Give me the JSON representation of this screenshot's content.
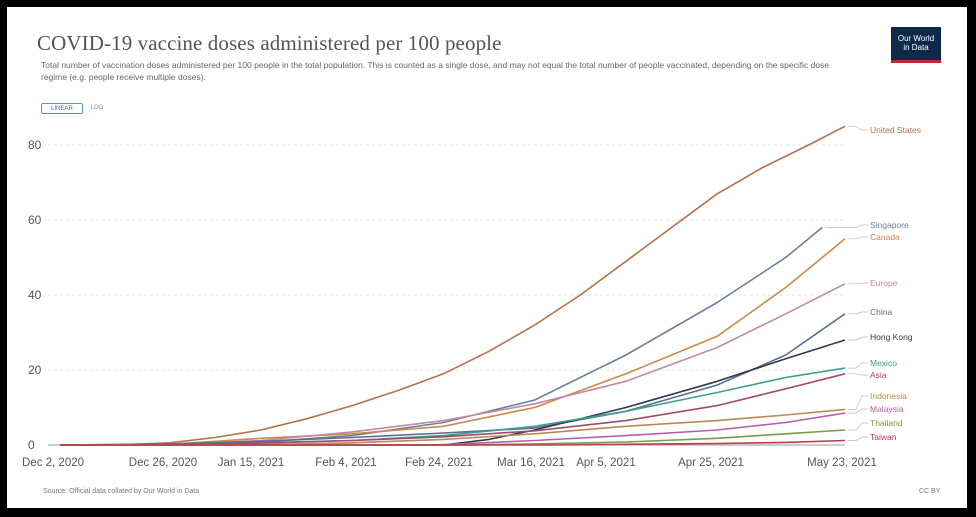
{
  "header": {
    "title": "COVID-19 vaccine doses administered per 100 people",
    "subtitle": "Total number of vaccination doses administered per 100 people in the total population. This is counted as a single dose, and may not equal the total number of people vaccinated, depending on the specific dose regime (e.g. people receive multiple doses).",
    "logo_text": "Our World in Data"
  },
  "controls": {
    "linear_label": "LINEAR",
    "log_label": "LOG",
    "active": "LINEAR"
  },
  "footer": {
    "source": "Source: Official data collated by Our World in Data",
    "license": "CC BY"
  },
  "colors": {
    "frame": "#000000",
    "grid": "#e3e3e3",
    "axis": "#999999",
    "logo_bg": "#0e2a4a",
    "logo_accent": "#c4262e"
  },
  "chart_data": {
    "type": "line",
    "title": "COVID-19 vaccine doses administered per 100 people",
    "xlabel": "",
    "ylabel": "",
    "x_ticks": [
      "Dec 2, 2020",
      "Dec 26, 2020",
      "Jan 15, 2021",
      "Feb 4, 2021",
      "Feb 24, 2021",
      "Mar 16, 2021",
      "Apr 5, 2021",
      "Apr 25, 2021",
      "May 23, 2021"
    ],
    "y_ticks": [
      0,
      20,
      40,
      60,
      80
    ],
    "ylim": [
      0,
      88
    ],
    "xlim": [
      "2020-12-02",
      "2021-05-23"
    ],
    "grid": "horizontal",
    "legend": "line-end labels, right",
    "series": [
      {
        "name": "United States",
        "color": "#b5724a",
        "points": [
          [
            "2020-12-02",
            0
          ],
          [
            "2020-12-14",
            0
          ],
          [
            "2020-12-26",
            0.6
          ],
          [
            "2021-01-05",
            2
          ],
          [
            "2021-01-15",
            4
          ],
          [
            "2021-01-25",
            7
          ],
          [
            "2021-02-04",
            10.5
          ],
          [
            "2021-02-14",
            14.5
          ],
          [
            "2021-02-24",
            19
          ],
          [
            "2021-03-06",
            25
          ],
          [
            "2021-03-16",
            32
          ],
          [
            "2021-03-26",
            40
          ],
          [
            "2021-04-05",
            49
          ],
          [
            "2021-04-15",
            58
          ],
          [
            "2021-04-25",
            67
          ],
          [
            "2021-05-05",
            74
          ],
          [
            "2021-05-15",
            80
          ],
          [
            "2021-05-23",
            85
          ]
        ]
      },
      {
        "name": "Singapore",
        "color": "#6d7f9c",
        "points": [
          [
            "2020-12-02",
            0
          ],
          [
            "2020-12-30",
            0
          ],
          [
            "2021-01-15",
            0.8
          ],
          [
            "2021-02-04",
            2.5
          ],
          [
            "2021-02-24",
            6
          ],
          [
            "2021-03-16",
            12
          ],
          [
            "2021-04-05",
            24
          ],
          [
            "2021-04-25",
            38
          ],
          [
            "2021-05-10",
            50
          ],
          [
            "2021-05-18",
            58
          ]
        ]
      },
      {
        "name": "Canada",
        "color": "#c98a4a",
        "points": [
          [
            "2020-12-02",
            0
          ],
          [
            "2020-12-14",
            0
          ],
          [
            "2020-12-26",
            0.2
          ],
          [
            "2021-01-15",
            1.8
          ],
          [
            "2021-02-04",
            3
          ],
          [
            "2021-02-24",
            5
          ],
          [
            "2021-03-16",
            10
          ],
          [
            "2021-04-05",
            19
          ],
          [
            "2021-04-25",
            29
          ],
          [
            "2021-05-10",
            42
          ],
          [
            "2021-05-23",
            55
          ]
        ]
      },
      {
        "name": "Europe",
        "color": "#c18aa0",
        "points": [
          [
            "2020-12-02",
            0
          ],
          [
            "2020-12-26",
            0.1
          ],
          [
            "2021-01-15",
            1.2
          ],
          [
            "2021-02-04",
            3.5
          ],
          [
            "2021-02-24",
            6.5
          ],
          [
            "2021-03-16",
            11
          ],
          [
            "2021-04-05",
            17
          ],
          [
            "2021-04-25",
            26
          ],
          [
            "2021-05-10",
            35
          ],
          [
            "2021-05-23",
            43
          ]
        ]
      },
      {
        "name": "China",
        "color": "#5a6f8a",
        "points": [
          [
            "2020-12-02",
            0
          ],
          [
            "2020-12-26",
            0.3
          ],
          [
            "2021-01-15",
            1
          ],
          [
            "2021-02-04",
            2
          ],
          [
            "2021-02-24",
            3.2
          ],
          [
            "2021-03-16",
            4.5
          ],
          [
            "2021-04-05",
            9
          ],
          [
            "2021-04-25",
            16
          ],
          [
            "2021-05-10",
            24
          ],
          [
            "2021-05-23",
            35
          ]
        ]
      },
      {
        "name": "Hong Kong",
        "color": "#2f3a4a",
        "points": [
          [
            "2020-12-02",
            0
          ],
          [
            "2021-02-24",
            0
          ],
          [
            "2021-03-06",
            1.5
          ],
          [
            "2021-03-16",
            4
          ],
          [
            "2021-04-05",
            10
          ],
          [
            "2021-04-25",
            17
          ],
          [
            "2021-05-10",
            23
          ],
          [
            "2021-05-23",
            28
          ]
        ]
      },
      {
        "name": "Mexico",
        "color": "#3f9c94",
        "points": [
          [
            "2020-12-02",
            0
          ],
          [
            "2020-12-26",
            0.1
          ],
          [
            "2021-01-15",
            0.6
          ],
          [
            "2021-02-04",
            1.2
          ],
          [
            "2021-02-24",
            2.5
          ],
          [
            "2021-03-16",
            5
          ],
          [
            "2021-04-05",
            9
          ],
          [
            "2021-04-25",
            14
          ],
          [
            "2021-05-10",
            18
          ],
          [
            "2021-05-23",
            20.5
          ]
        ]
      },
      {
        "name": "Asia",
        "color": "#a04a68",
        "points": [
          [
            "2020-12-02",
            0
          ],
          [
            "2020-12-26",
            0.1
          ],
          [
            "2021-01-15",
            0.5
          ],
          [
            "2021-02-04",
            1.2
          ],
          [
            "2021-02-24",
            2.2
          ],
          [
            "2021-03-16",
            3.8
          ],
          [
            "2021-04-05",
            6.5
          ],
          [
            "2021-04-25",
            10.5
          ],
          [
            "2021-05-10",
            15
          ],
          [
            "2021-05-23",
            19
          ]
        ]
      },
      {
        "name": "Indonesia",
        "color": "#b88a52",
        "points": [
          [
            "2020-12-02",
            0
          ],
          [
            "2021-01-12",
            0
          ],
          [
            "2021-02-04",
            0.6
          ],
          [
            "2021-02-24",
            1.5
          ],
          [
            "2021-03-16",
            3
          ],
          [
            "2021-04-05",
            5
          ],
          [
            "2021-04-25",
            6.5
          ],
          [
            "2021-05-10",
            8
          ],
          [
            "2021-05-23",
            9.5
          ]
        ]
      },
      {
        "name": "Malaysia",
        "color": "#b560a8",
        "points": [
          [
            "2020-12-02",
            0
          ],
          [
            "2021-02-22",
            0
          ],
          [
            "2021-03-16",
            1.2
          ],
          [
            "2021-04-05",
            2.5
          ],
          [
            "2021-04-25",
            4
          ],
          [
            "2021-05-10",
            6
          ],
          [
            "2021-05-23",
            8.5
          ]
        ]
      },
      {
        "name": "Thailand",
        "color": "#7a9a4a",
        "points": [
          [
            "2020-12-02",
            0
          ],
          [
            "2021-02-27",
            0
          ],
          [
            "2021-03-16",
            0.3
          ],
          [
            "2021-04-05",
            0.8
          ],
          [
            "2021-04-25",
            1.8
          ],
          [
            "2021-05-10",
            3
          ],
          [
            "2021-05-23",
            4
          ]
        ]
      },
      {
        "name": "Taiwan",
        "color": "#c0394a",
        "points": [
          [
            "2020-12-02",
            0
          ],
          [
            "2021-03-20",
            0
          ],
          [
            "2021-04-05",
            0.2
          ],
          [
            "2021-04-25",
            0.4
          ],
          [
            "2021-05-10",
            0.7
          ],
          [
            "2021-05-23",
            1.2
          ]
        ]
      }
    ]
  }
}
